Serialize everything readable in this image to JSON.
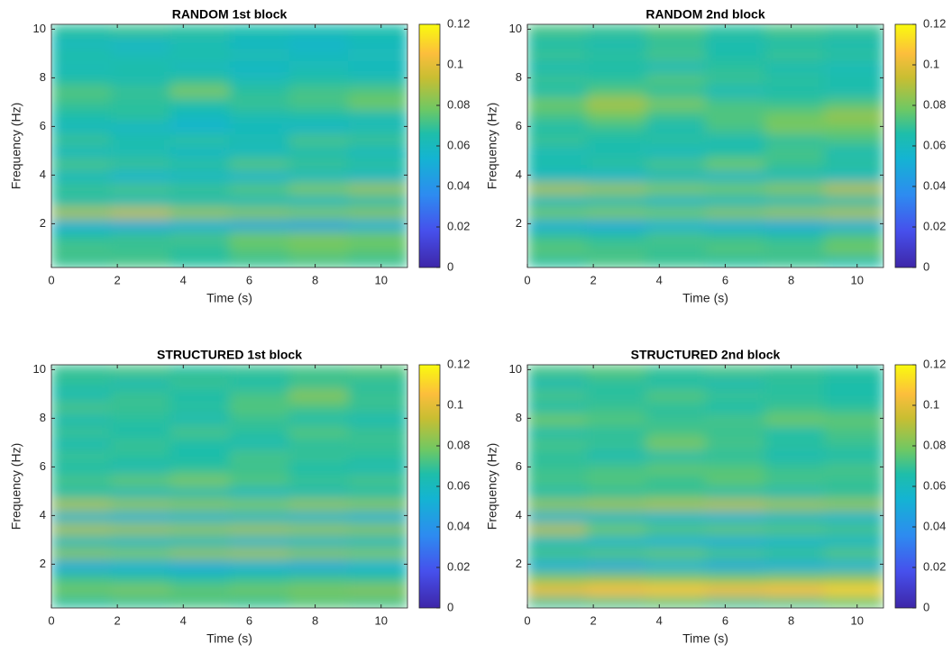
{
  "chart_data": [
    {
      "type": "heatmap",
      "title": "RANDOM 1st block",
      "xlabel": "Time (s)",
      "ylabel": "Frequency (Hz)",
      "colormap": "parula",
      "x": [
        0.9,
        2.7,
        4.5,
        6.3,
        8.1,
        9.9
      ],
      "y": [
        0.45,
        0.95,
        1.45,
        1.95,
        2.45,
        2.95,
        3.45,
        3.95,
        4.45,
        4.95,
        5.45,
        5.95,
        6.45,
        6.95,
        7.45,
        7.95,
        8.45,
        8.95,
        9.45,
        9.95
      ],
      "values": [
        [
          0.07,
          0.072,
          0.068,
          0.07,
          0.072,
          0.07
        ],
        [
          0.072,
          0.07,
          0.068,
          0.075,
          0.078,
          0.076
        ],
        [
          0.068,
          0.07,
          0.072,
          0.078,
          0.08,
          0.078
        ],
        [
          0.052,
          0.05,
          0.052,
          0.05,
          0.048,
          0.052
        ],
        [
          0.088,
          0.092,
          0.085,
          0.082,
          0.08,
          0.082
        ],
        [
          0.065,
          0.062,
          0.064,
          0.062,
          0.06,
          0.064
        ],
        [
          0.07,
          0.072,
          0.07,
          0.074,
          0.08,
          0.085
        ],
        [
          0.06,
          0.055,
          0.058,
          0.056,
          0.06,
          0.058
        ],
        [
          0.072,
          0.07,
          0.068,
          0.074,
          0.07,
          0.068
        ],
        [
          0.06,
          0.062,
          0.058,
          0.06,
          0.064,
          0.06
        ],
        [
          0.07,
          0.066,
          0.068,
          0.064,
          0.072,
          0.07
        ],
        [
          0.06,
          0.058,
          0.055,
          0.06,
          0.058,
          0.062
        ],
        [
          0.066,
          0.068,
          0.06,
          0.064,
          0.066,
          0.064
        ],
        [
          0.07,
          0.068,
          0.066,
          0.07,
          0.072,
          0.078
        ],
        [
          0.074,
          0.07,
          0.08,
          0.068,
          0.072,
          0.074
        ],
        [
          0.066,
          0.064,
          0.068,
          0.062,
          0.066,
          0.064
        ],
        [
          0.062,
          0.066,
          0.06,
          0.058,
          0.062,
          0.06
        ],
        [
          0.066,
          0.062,
          0.066,
          0.064,
          0.06,
          0.062
        ],
        [
          0.06,
          0.058,
          0.062,
          0.058,
          0.056,
          0.06
        ],
        [
          0.068,
          0.07,
          0.068,
          0.066,
          0.064,
          0.066
        ]
      ],
      "xlim": [
        0,
        10.8
      ],
      "xticks": [
        0,
        2,
        4,
        6,
        8,
        10
      ],
      "ylim": [
        0.2,
        10.2
      ],
      "yticks": [
        2,
        4,
        6,
        8,
        10
      ],
      "clim": [
        0,
        0.12
      ],
      "cticks": [
        0,
        0.02,
        0.04,
        0.06,
        0.08,
        0.1,
        0.12
      ]
    },
    {
      "type": "heatmap",
      "title": "RANDOM 2nd block",
      "xlabel": "Time (s)",
      "ylabel": "Frequency (Hz)",
      "colormap": "parula",
      "x": [
        0.9,
        2.7,
        4.5,
        6.3,
        8.1,
        9.9
      ],
      "y": [
        0.45,
        0.95,
        1.45,
        1.95,
        2.45,
        2.95,
        3.45,
        3.95,
        4.45,
        4.95,
        5.45,
        5.95,
        6.45,
        6.95,
        7.45,
        7.95,
        8.45,
        8.95,
        9.45,
        9.95
      ],
      "values": [
        [
          0.068,
          0.072,
          0.07,
          0.068,
          0.07,
          0.066
        ],
        [
          0.075,
          0.072,
          0.07,
          0.074,
          0.072,
          0.078
        ],
        [
          0.07,
          0.068,
          0.072,
          0.07,
          0.068,
          0.074
        ],
        [
          0.052,
          0.05,
          0.054,
          0.052,
          0.05,
          0.052
        ],
        [
          0.078,
          0.08,
          0.078,
          0.082,
          0.085,
          0.088
        ],
        [
          0.06,
          0.062,
          0.058,
          0.06,
          0.062,
          0.064
        ],
        [
          0.088,
          0.085,
          0.08,
          0.078,
          0.082,
          0.09
        ],
        [
          0.058,
          0.056,
          0.06,
          0.058,
          0.062,
          0.06
        ],
        [
          0.066,
          0.068,
          0.072,
          0.078,
          0.07,
          0.068
        ],
        [
          0.062,
          0.064,
          0.06,
          0.066,
          0.072,
          0.064
        ],
        [
          0.07,
          0.066,
          0.068,
          0.064,
          0.068,
          0.072
        ],
        [
          0.066,
          0.07,
          0.064,
          0.072,
          0.08,
          0.078
        ],
        [
          0.072,
          0.078,
          0.07,
          0.074,
          0.078,
          0.085
        ],
        [
          0.078,
          0.088,
          0.08,
          0.072,
          0.07,
          0.074
        ],
        [
          0.066,
          0.074,
          0.068,
          0.062,
          0.066,
          0.064
        ],
        [
          0.07,
          0.068,
          0.074,
          0.07,
          0.068,
          0.066
        ],
        [
          0.064,
          0.066,
          0.062,
          0.068,
          0.064,
          0.062
        ],
        [
          0.07,
          0.068,
          0.072,
          0.066,
          0.07,
          0.068
        ],
        [
          0.066,
          0.064,
          0.068,
          0.064,
          0.066,
          0.064
        ],
        [
          0.072,
          0.07,
          0.074,
          0.068,
          0.072,
          0.07
        ]
      ],
      "xlim": [
        0,
        10.8
      ],
      "xticks": [
        0,
        2,
        4,
        6,
        8,
        10
      ],
      "ylim": [
        0.2,
        10.2
      ],
      "yticks": [
        2,
        4,
        6,
        8,
        10
      ],
      "clim": [
        0,
        0.12
      ],
      "cticks": [
        0,
        0.02,
        0.04,
        0.06,
        0.08,
        0.1,
        0.12
      ]
    },
    {
      "type": "heatmap",
      "title": "STRUCTURED 1st block",
      "xlabel": "Time (s)",
      "ylabel": "Frequency (Hz)",
      "colormap": "parula",
      "x": [
        0.9,
        2.7,
        4.5,
        6.3,
        8.1,
        9.9
      ],
      "y": [
        0.45,
        0.95,
        1.45,
        1.95,
        2.45,
        2.95,
        3.45,
        3.95,
        4.45,
        4.95,
        5.45,
        5.95,
        6.45,
        6.95,
        7.45,
        7.95,
        8.45,
        8.95,
        9.45,
        9.95
      ],
      "values": [
        [
          0.068,
          0.07,
          0.072,
          0.07,
          0.074,
          0.072
        ],
        [
          0.078,
          0.08,
          0.076,
          0.078,
          0.08,
          0.082
        ],
        [
          0.07,
          0.068,
          0.066,
          0.068,
          0.07,
          0.068
        ],
        [
          0.05,
          0.052,
          0.05,
          0.052,
          0.05,
          0.054
        ],
        [
          0.082,
          0.08,
          0.084,
          0.086,
          0.082,
          0.08
        ],
        [
          0.06,
          0.058,
          0.06,
          0.056,
          0.058,
          0.06
        ],
        [
          0.088,
          0.086,
          0.084,
          0.086,
          0.084,
          0.082
        ],
        [
          0.056,
          0.054,
          0.056,
          0.058,
          0.056,
          0.054
        ],
        [
          0.088,
          0.084,
          0.082,
          0.08,
          0.084,
          0.082
        ],
        [
          0.066,
          0.062,
          0.064,
          0.06,
          0.064,
          0.066
        ],
        [
          0.072,
          0.076,
          0.08,
          0.074,
          0.07,
          0.072
        ],
        [
          0.066,
          0.064,
          0.068,
          0.07,
          0.066,
          0.064
        ],
        [
          0.07,
          0.068,
          0.066,
          0.072,
          0.07,
          0.068
        ],
        [
          0.064,
          0.07,
          0.066,
          0.064,
          0.068,
          0.07
        ],
        [
          0.07,
          0.066,
          0.072,
          0.068,
          0.074,
          0.07
        ],
        [
          0.064,
          0.068,
          0.064,
          0.07,
          0.066,
          0.064
        ],
        [
          0.072,
          0.07,
          0.068,
          0.074,
          0.072,
          0.07
        ],
        [
          0.064,
          0.07,
          0.066,
          0.072,
          0.082,
          0.07
        ],
        [
          0.068,
          0.064,
          0.07,
          0.066,
          0.07,
          0.068
        ],
        [
          0.07,
          0.072,
          0.068,
          0.07,
          0.072,
          0.074
        ]
      ],
      "xlim": [
        0,
        10.8
      ],
      "xticks": [
        0,
        2,
        4,
        6,
        8,
        10
      ],
      "ylim": [
        0.2,
        10.2
      ],
      "yticks": [
        2,
        4,
        6,
        8,
        10
      ],
      "clim": [
        0,
        0.12
      ],
      "cticks": [
        0,
        0.02,
        0.04,
        0.06,
        0.08,
        0.1,
        0.12
      ]
    },
    {
      "type": "heatmap",
      "title": "STRUCTURED 2nd block",
      "xlabel": "Time (s)",
      "ylabel": "Frequency (Hz)",
      "colormap": "parula",
      "x": [
        0.9,
        2.7,
        4.5,
        6.3,
        8.1,
        9.9
      ],
      "y": [
        0.45,
        0.95,
        1.45,
        1.95,
        2.45,
        2.95,
        3.45,
        3.95,
        4.45,
        4.95,
        5.45,
        5.95,
        6.45,
        6.95,
        7.45,
        7.95,
        8.45,
        8.95,
        9.45,
        9.95
      ],
      "values": [
        [
          0.07,
          0.072,
          0.074,
          0.07,
          0.072,
          0.076
        ],
        [
          0.102,
          0.106,
          0.108,
          0.104,
          0.106,
          0.11
        ],
        [
          0.08,
          0.082,
          0.08,
          0.078,
          0.08,
          0.082
        ],
        [
          0.052,
          0.05,
          0.054,
          0.05,
          0.052,
          0.054
        ],
        [
          0.072,
          0.074,
          0.076,
          0.072,
          0.07,
          0.074
        ],
        [
          0.06,
          0.056,
          0.054,
          0.052,
          0.056,
          0.058
        ],
        [
          0.09,
          0.078,
          0.074,
          0.076,
          0.074,
          0.072
        ],
        [
          0.056,
          0.058,
          0.056,
          0.054,
          0.058,
          0.056
        ],
        [
          0.084,
          0.086,
          0.088,
          0.09,
          0.086,
          0.084
        ],
        [
          0.066,
          0.068,
          0.07,
          0.066,
          0.064,
          0.068
        ],
        [
          0.072,
          0.074,
          0.07,
          0.076,
          0.072,
          0.07
        ],
        [
          0.07,
          0.072,
          0.076,
          0.074,
          0.07,
          0.072
        ],
        [
          0.068,
          0.064,
          0.066,
          0.068,
          0.064,
          0.066
        ],
        [
          0.072,
          0.07,
          0.08,
          0.072,
          0.068,
          0.07
        ],
        [
          0.066,
          0.068,
          0.072,
          0.07,
          0.066,
          0.072
        ],
        [
          0.078,
          0.074,
          0.07,
          0.072,
          0.078,
          0.076
        ],
        [
          0.066,
          0.07,
          0.068,
          0.066,
          0.07,
          0.068
        ],
        [
          0.072,
          0.068,
          0.074,
          0.07,
          0.068,
          0.066
        ],
        [
          0.064,
          0.068,
          0.066,
          0.064,
          0.068,
          0.066
        ],
        [
          0.072,
          0.074,
          0.07,
          0.072,
          0.07,
          0.068
        ]
      ],
      "xlim": [
        0,
        10.8
      ],
      "xticks": [
        0,
        2,
        4,
        6,
        8,
        10
      ],
      "ylim": [
        0.2,
        10.2
      ],
      "yticks": [
        2,
        4,
        6,
        8,
        10
      ],
      "clim": [
        0,
        0.12
      ],
      "cticks": [
        0,
        0.02,
        0.04,
        0.06,
        0.08,
        0.1,
        0.12
      ]
    }
  ]
}
